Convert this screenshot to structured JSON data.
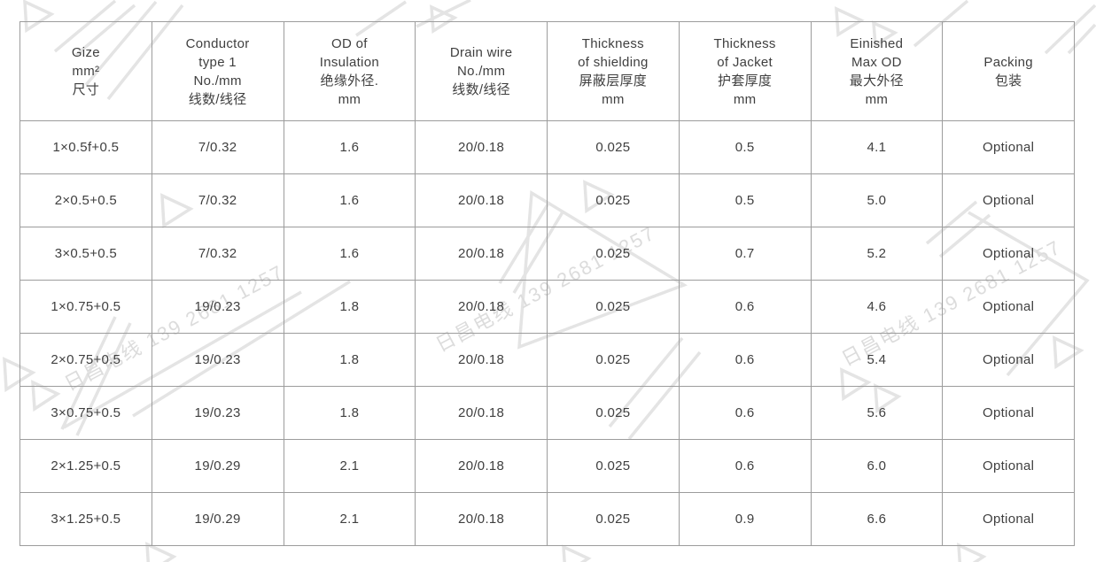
{
  "page": {
    "background": "#ffffff"
  },
  "watermark": {
    "text": "日昌电线 139 2681 1257",
    "text_color": "#dcdcdc",
    "shape_color": "#e4e4e4"
  },
  "table": {
    "border_color": "#9c9c9c",
    "text_color": "#3f3f3f",
    "columns": [
      {
        "lines": [
          "Gize",
          "mm²",
          "尺寸"
        ]
      },
      {
        "lines": [
          "Conductor",
          "type 1",
          "No./mm",
          "线数/线径"
        ]
      },
      {
        "lines": [
          "OD of",
          "Insulation",
          "绝缘外径.",
          "mm"
        ]
      },
      {
        "lines": [
          "Drain wire",
          "No./mm",
          "线数/线径"
        ]
      },
      {
        "lines": [
          "Thickness",
          "of shielding",
          "屏蔽层厚度",
          "mm"
        ]
      },
      {
        "lines": [
          "Thickness",
          "of Jacket",
          "护套厚度",
          "mm"
        ]
      },
      {
        "lines": [
          "Einished",
          "Max OD",
          "最大外径",
          "mm"
        ]
      },
      {
        "lines": [
          "Packing",
          "包装"
        ]
      }
    ],
    "rows": [
      [
        "1×0.5f+0.5",
        "7/0.32",
        "1.6",
        "20/0.18",
        "0.025",
        "0.5",
        "4.1",
        "Optional"
      ],
      [
        "2×0.5+0.5",
        "7/0.32",
        "1.6",
        "20/0.18",
        "0.025",
        "0.5",
        "5.0",
        "Optional"
      ],
      [
        "3×0.5+0.5",
        "7/0.32",
        "1.6",
        "20/0.18",
        "0.025",
        "0.7",
        "5.2",
        "Optional"
      ],
      [
        "1×0.75+0.5",
        "19/0.23",
        "1.8",
        "20/0.18",
        "0.025",
        "0.6",
        "4.6",
        "Optional"
      ],
      [
        "2×0.75+0.5",
        "19/0.23",
        "1.8",
        "20/0.18",
        "0.025",
        "0.6",
        "5.4",
        "Optional"
      ],
      [
        "3×0.75+0.5",
        "19/0.23",
        "1.8",
        "20/0.18",
        "0.025",
        "0.6",
        "5.6",
        "Optional"
      ],
      [
        "2×1.25+0.5",
        "19/0.29",
        "2.1",
        "20/0.18",
        "0.025",
        "0.6",
        "6.0",
        "Optional"
      ],
      [
        "3×1.25+0.5",
        "19/0.29",
        "2.1",
        "20/0.18",
        "0.025",
        "0.9",
        "6.6",
        "Optional"
      ]
    ]
  }
}
